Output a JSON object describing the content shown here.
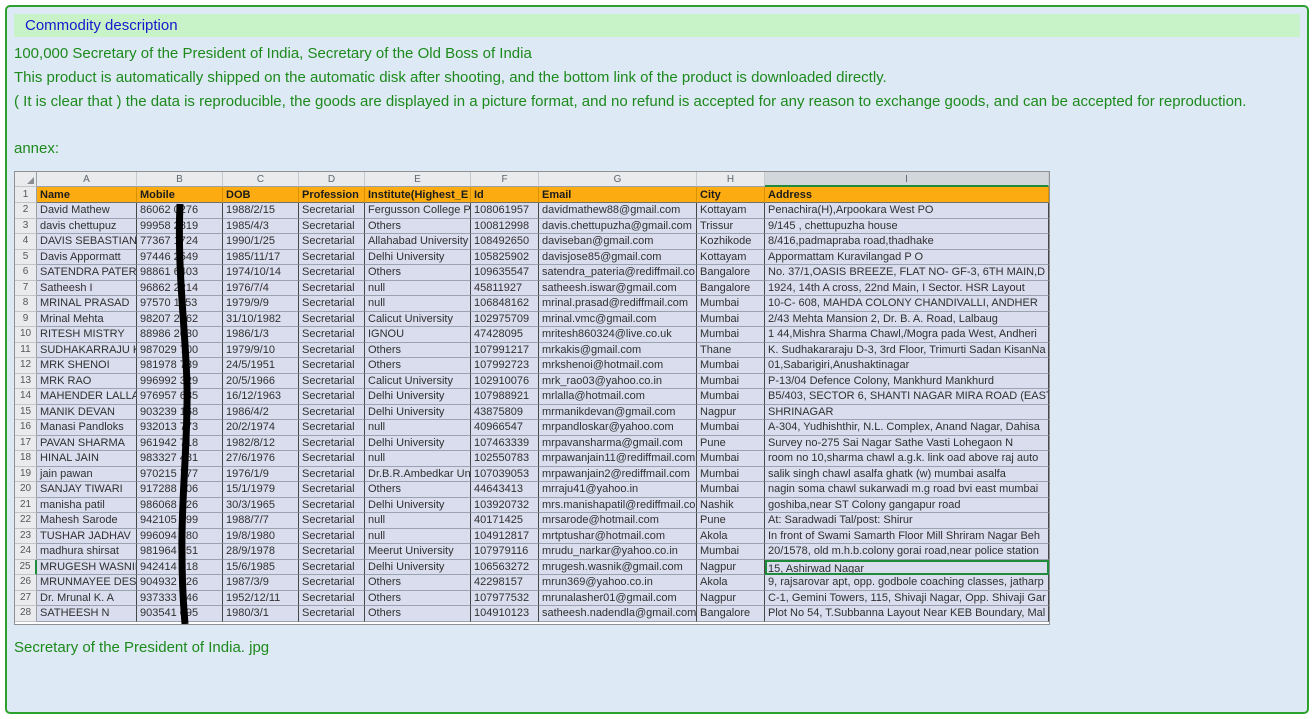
{
  "header": {
    "title": "Commodity description"
  },
  "description": {
    "line1": "100,000 Secretary of the President of India, Secretary of the Old Boss of India",
    "line2": "This product is automatically shipped on the automatic disk after shooting, and the bottom link of the product is downloaded directly.",
    "line3": "( It is clear that ) the data is reproducible, the goods are displayed in a picture format, and no refund is accepted for any reason to exchange goods, and can be accepted for reproduction."
  },
  "annex_label": "annex:",
  "attachment_filename": "Secretary of the President of India. jpg",
  "colors": {
    "panel_border": "#2da12d",
    "panel_background": "#dde9f4",
    "header_bar_background": "#c8f3c8",
    "title_text": "#1717cf",
    "body_text": "#1d8a1d",
    "sheet_header_background": "#fcab11",
    "sheet_row_background": "#d9ddee",
    "selection_green": "#1f8b3b",
    "redaction_mark": "#000000"
  },
  "spreadsheet": {
    "column_letters": [
      "A",
      "B",
      "C",
      "D",
      "E",
      "F",
      "G",
      "H",
      "I"
    ],
    "selected_column": "I",
    "selected_row": 25,
    "headers": [
      "Name",
      "Mobile",
      "DOB",
      "Profession",
      "Institute(Highest_E",
      "Id",
      "Email",
      "City",
      "Address"
    ],
    "rows": [
      [
        2,
        "David Mathew",
        "86062 0276",
        "1988/2/15",
        "Secretarial",
        "Fergusson College P",
        "108061957",
        "davidmathew88@gmail.com",
        "Kottayam",
        "Penachira(H),Arpookara West PO"
      ],
      [
        3,
        "davis chettupuz",
        "99958 2819",
        "1985/4/3",
        "Secretarial",
        "Others",
        "100812998",
        "davis.chettupuzha@gmail.com",
        "Trissur",
        "9/145 , chettupuzha house"
      ],
      [
        4,
        "DAVIS SEBASTIAN",
        "77367 1724",
        "1990/1/25",
        "Secretarial",
        "Allahabad University",
        "108492650",
        "daviseban@gmail.com",
        "Kozhikode",
        "8/416,padmapraba road,thadhake"
      ],
      [
        5,
        "Davis Appormatt",
        "97446 2549",
        "1985/11/17",
        "Secretarial",
        "Delhi University",
        "105825902",
        "davisjose85@gmail.com",
        "Kottayam",
        "Appormattam Kuravilangad P O"
      ],
      [
        6,
        "SATENDRA PATERI",
        "98861 6403",
        "1974/10/14",
        "Secretarial",
        "Others",
        "109635547",
        "satendra_pateria@rediffmail.co",
        "Bangalore",
        "No. 37/1,OASIS BREEZE, FLAT NO- GF-3, 6TH MAIN,D"
      ],
      [
        7,
        "Satheesh I",
        "96862 2214",
        "1976/7/4",
        "Secretarial",
        "null",
        "45811927",
        "satheesh.iswar@gmail.com",
        "Bangalore",
        "1924, 14th A cross, 22nd Main, I Sector. HSR Layout"
      ],
      [
        8,
        "MRINAL PRASAD",
        "97570 1153",
        "1979/9/9",
        "Secretarial",
        "null",
        "106848162",
        "mrinal.prasad@rediffmail.com",
        "Mumbai",
        "10-C- 608, MAHDA COLONY CHANDIVALLI, ANDHER"
      ],
      [
        9,
        "Mrinal Mehta",
        "98207 2762",
        "31/10/1982",
        "Secretarial",
        "Calicut University",
        "102975709",
        "mrinal.vmc@gmail.com",
        "Mumbai",
        "2/43 Mehta Mansion 2, Dr. B. A. Road, Lalbaug"
      ],
      [
        10,
        "RITESH MISTRY",
        "88986 2630",
        "1986/1/3",
        "Secretarial",
        "IGNOU",
        "47428095",
        "mritesh860324@live.co.uk",
        "Mumbai",
        "1 44,Mishra  Sharma Chawl,/Mogra pada West, Andheri"
      ],
      [
        11,
        "SUDHAKARRAJU K",
        "987029 700",
        "1979/9/10",
        "Secretarial",
        "Others",
        "107991217",
        "mrkakis@gmail.com",
        "Thane",
        "K. Sudhakararaju D-3, 3rd Floor, Trimurti Sadan KisanNa"
      ],
      [
        12,
        "MRK SHENOI",
        "981978 789",
        "24/5/1951",
        "Secretarial",
        "Others",
        "107992723",
        "mrkshenoi@hotmail.com",
        "Mumbai",
        "01,Sabarigiri,Anushaktinagar"
      ],
      [
        13,
        "MRK RAO",
        "996992 329",
        "20/5/1966",
        "Secretarial",
        "Calicut University",
        "102910076",
        "mrk_rao03@yahoo.co.in",
        "Mumbai",
        "P-13/04 Defence Colony, Mankhurd Mankhurd"
      ],
      [
        14,
        "MAHENDER LALLA",
        "976957 685",
        "16/12/1963",
        "Secretarial",
        "Delhi University",
        "107988921",
        "mrlalla@hotmail.com",
        "Mumbai",
        "B5/403, SECTOR 6, SHANTI NAGAR MIRA ROAD (EAST"
      ],
      [
        15,
        "MANIK DEVAN",
        "903239 168",
        "1986/4/2",
        "Secretarial",
        "Delhi University",
        "43875809",
        "mrmanikdevan@gmail.com",
        "Nagpur",
        "SHRINAGAR"
      ],
      [
        16,
        "Manasi Pandloks",
        "932013 773",
        "20/2/1974",
        "Secretarial",
        "null",
        "40966547",
        "mrpandloskar@yahoo.com",
        "Mumbai",
        "A-304, Yudhishthir, N.L. Complex, Anand Nagar, Dahisa"
      ],
      [
        17,
        "PAVAN SHARMA",
        "961942 718",
        "1982/8/12",
        "Secretarial",
        "Delhi University",
        "107463339",
        "mrpavansharma@gmail.com",
        "Pune",
        "Survey no-275    Sai Nagar Sathe Vasti      Lohegaon N"
      ],
      [
        18,
        "HINAL JAIN",
        "983327 481",
        "27/6/1976",
        "Secretarial",
        "null",
        "102550783",
        "mrpawanjain11@rediffmail.com",
        "Mumbai",
        "room no 10,sharma chawl a.g.k. link oad above raj auto"
      ],
      [
        19,
        "jain pawan",
        "970215 777",
        "1976/1/9",
        "Secretarial",
        "Dr.B.R.Ambedkar Un",
        "107039053",
        "mrpawanjain2@rediffmail.com",
        "Mumbai",
        "salik singh chawl asalfa ghatk (w) mumbai asalfa"
      ],
      [
        20,
        "SANJAY TIWARI",
        "917288 206",
        "15/1/1979",
        "Secretarial",
        "Others",
        "44643413",
        "mrraju41@yahoo.in",
        "Mumbai",
        "nagin soma chawl sukarwadi m.g road bvi east mumbai"
      ],
      [
        21,
        "manisha patil",
        "986068 626",
        "30/3/1965",
        "Secretarial",
        "Delhi University",
        "103920732",
        "mrs.manishapatil@rediffmail.co",
        "Nashik",
        "goshiba,near ST Colony gangapur road"
      ],
      [
        22,
        "Mahesh Sarode",
        "942105 199",
        "1988/7/7",
        "Secretarial",
        "null",
        "40171425",
        "mrsarode@hotmail.com",
        "Pune",
        "At: Saradwadi Tal/post: Shirur"
      ],
      [
        23,
        "TUSHAR JADHAV",
        "996094 880",
        "19/8/1980",
        "Secretarial",
        "null",
        "104912817",
        "mrtptushar@hotmail.com",
        "Akola",
        "In front of Swami Samarth Floor Mill Shriram Nagar Beh"
      ],
      [
        24,
        "madhura shirsat",
        "981964 051",
        "28/9/1978",
        "Secretarial",
        "Meerut University",
        "107979116",
        "mrudu_narkar@yahoo.co.in",
        "Mumbai",
        "20/1578, old m.h.b.colony gorai road,near police station"
      ],
      [
        25,
        "MRUGESH WASNIK",
        "942414 918",
        "15/6/1985",
        "Secretarial",
        "Delhi University",
        "106563272",
        "mrugesh.wasnik@gmail.com",
        "Nagpur",
        "15, Ashirwad Nagar"
      ],
      [
        26,
        "MRUNMAYEE DESH",
        "904932 626",
        "1987/3/9",
        "Secretarial",
        "Others",
        "42298157",
        "mrun369@yahoo.co.in",
        "Akola",
        "9, rajsarovar apt, opp. godbole coaching classes, jatharp"
      ],
      [
        27,
        "Dr. Mrunal K. A",
        "937333 646",
        "1952/12/11",
        "Secretarial",
        "Others",
        "107977532",
        "mrunalasher01@gmail.com",
        "Nagpur",
        "C-1, Gemini Towers, 115, Shivaji Nagar, Opp. Shivaji Gar"
      ],
      [
        28,
        "SATHEESH N",
        "903541 095",
        "1980/3/1",
        "Secretarial",
        "Others",
        "104910123",
        "satheesh.nadendla@gmail.com",
        "Bangalore",
        "Plot No 54, T.Subbanna Layout Near KEB Boundary, Mal"
      ]
    ]
  }
}
